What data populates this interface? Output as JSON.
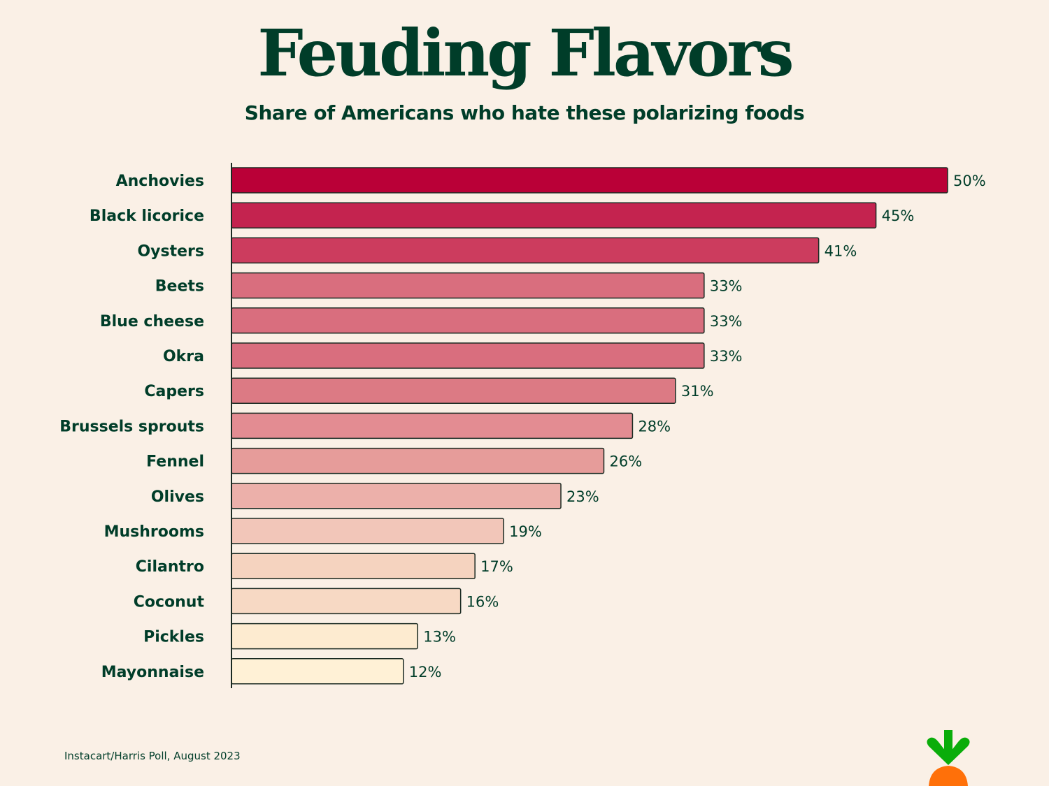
{
  "chart_data": {
    "type": "bar",
    "orientation": "horizontal",
    "title": "Feuding Flavors",
    "subtitle": "Share of Americans who hate these polarizing foods",
    "categories": [
      "Anchovies",
      "Black licorice",
      "Oysters",
      "Beets",
      "Blue cheese",
      "Okra",
      "Capers",
      "Brussels sprouts",
      "Fennel",
      "Olives",
      "Mushrooms",
      "Cilantro",
      "Coconut",
      "Pickles",
      "Mayonnaise"
    ],
    "values": [
      50,
      45,
      41,
      33,
      33,
      33,
      31,
      28,
      26,
      23,
      19,
      17,
      16,
      13,
      12
    ],
    "value_suffix": "%",
    "colors": [
      "#BA0037",
      "#C4234F",
      "#CC3C5E",
      "#D96E7E",
      "#D96E7E",
      "#D96E7E",
      "#DC7A84",
      "#E38C92",
      "#E69C9A",
      "#ECB0AA",
      "#F2C6B9",
      "#F5D3BF",
      "#F7D9C4",
      "#FDEBD0",
      "#FFF1D6"
    ],
    "xlim": [
      0,
      50
    ],
    "grid": false,
    "legend": "none",
    "xlabel": "",
    "ylabel": ""
  },
  "source": "Instacart/Harris Poll, August 2023",
  "logo": {
    "icon": "carrot-logo-icon",
    "colors": {
      "leaf": "#0AAD0A",
      "carrot": "#FF7009"
    }
  }
}
